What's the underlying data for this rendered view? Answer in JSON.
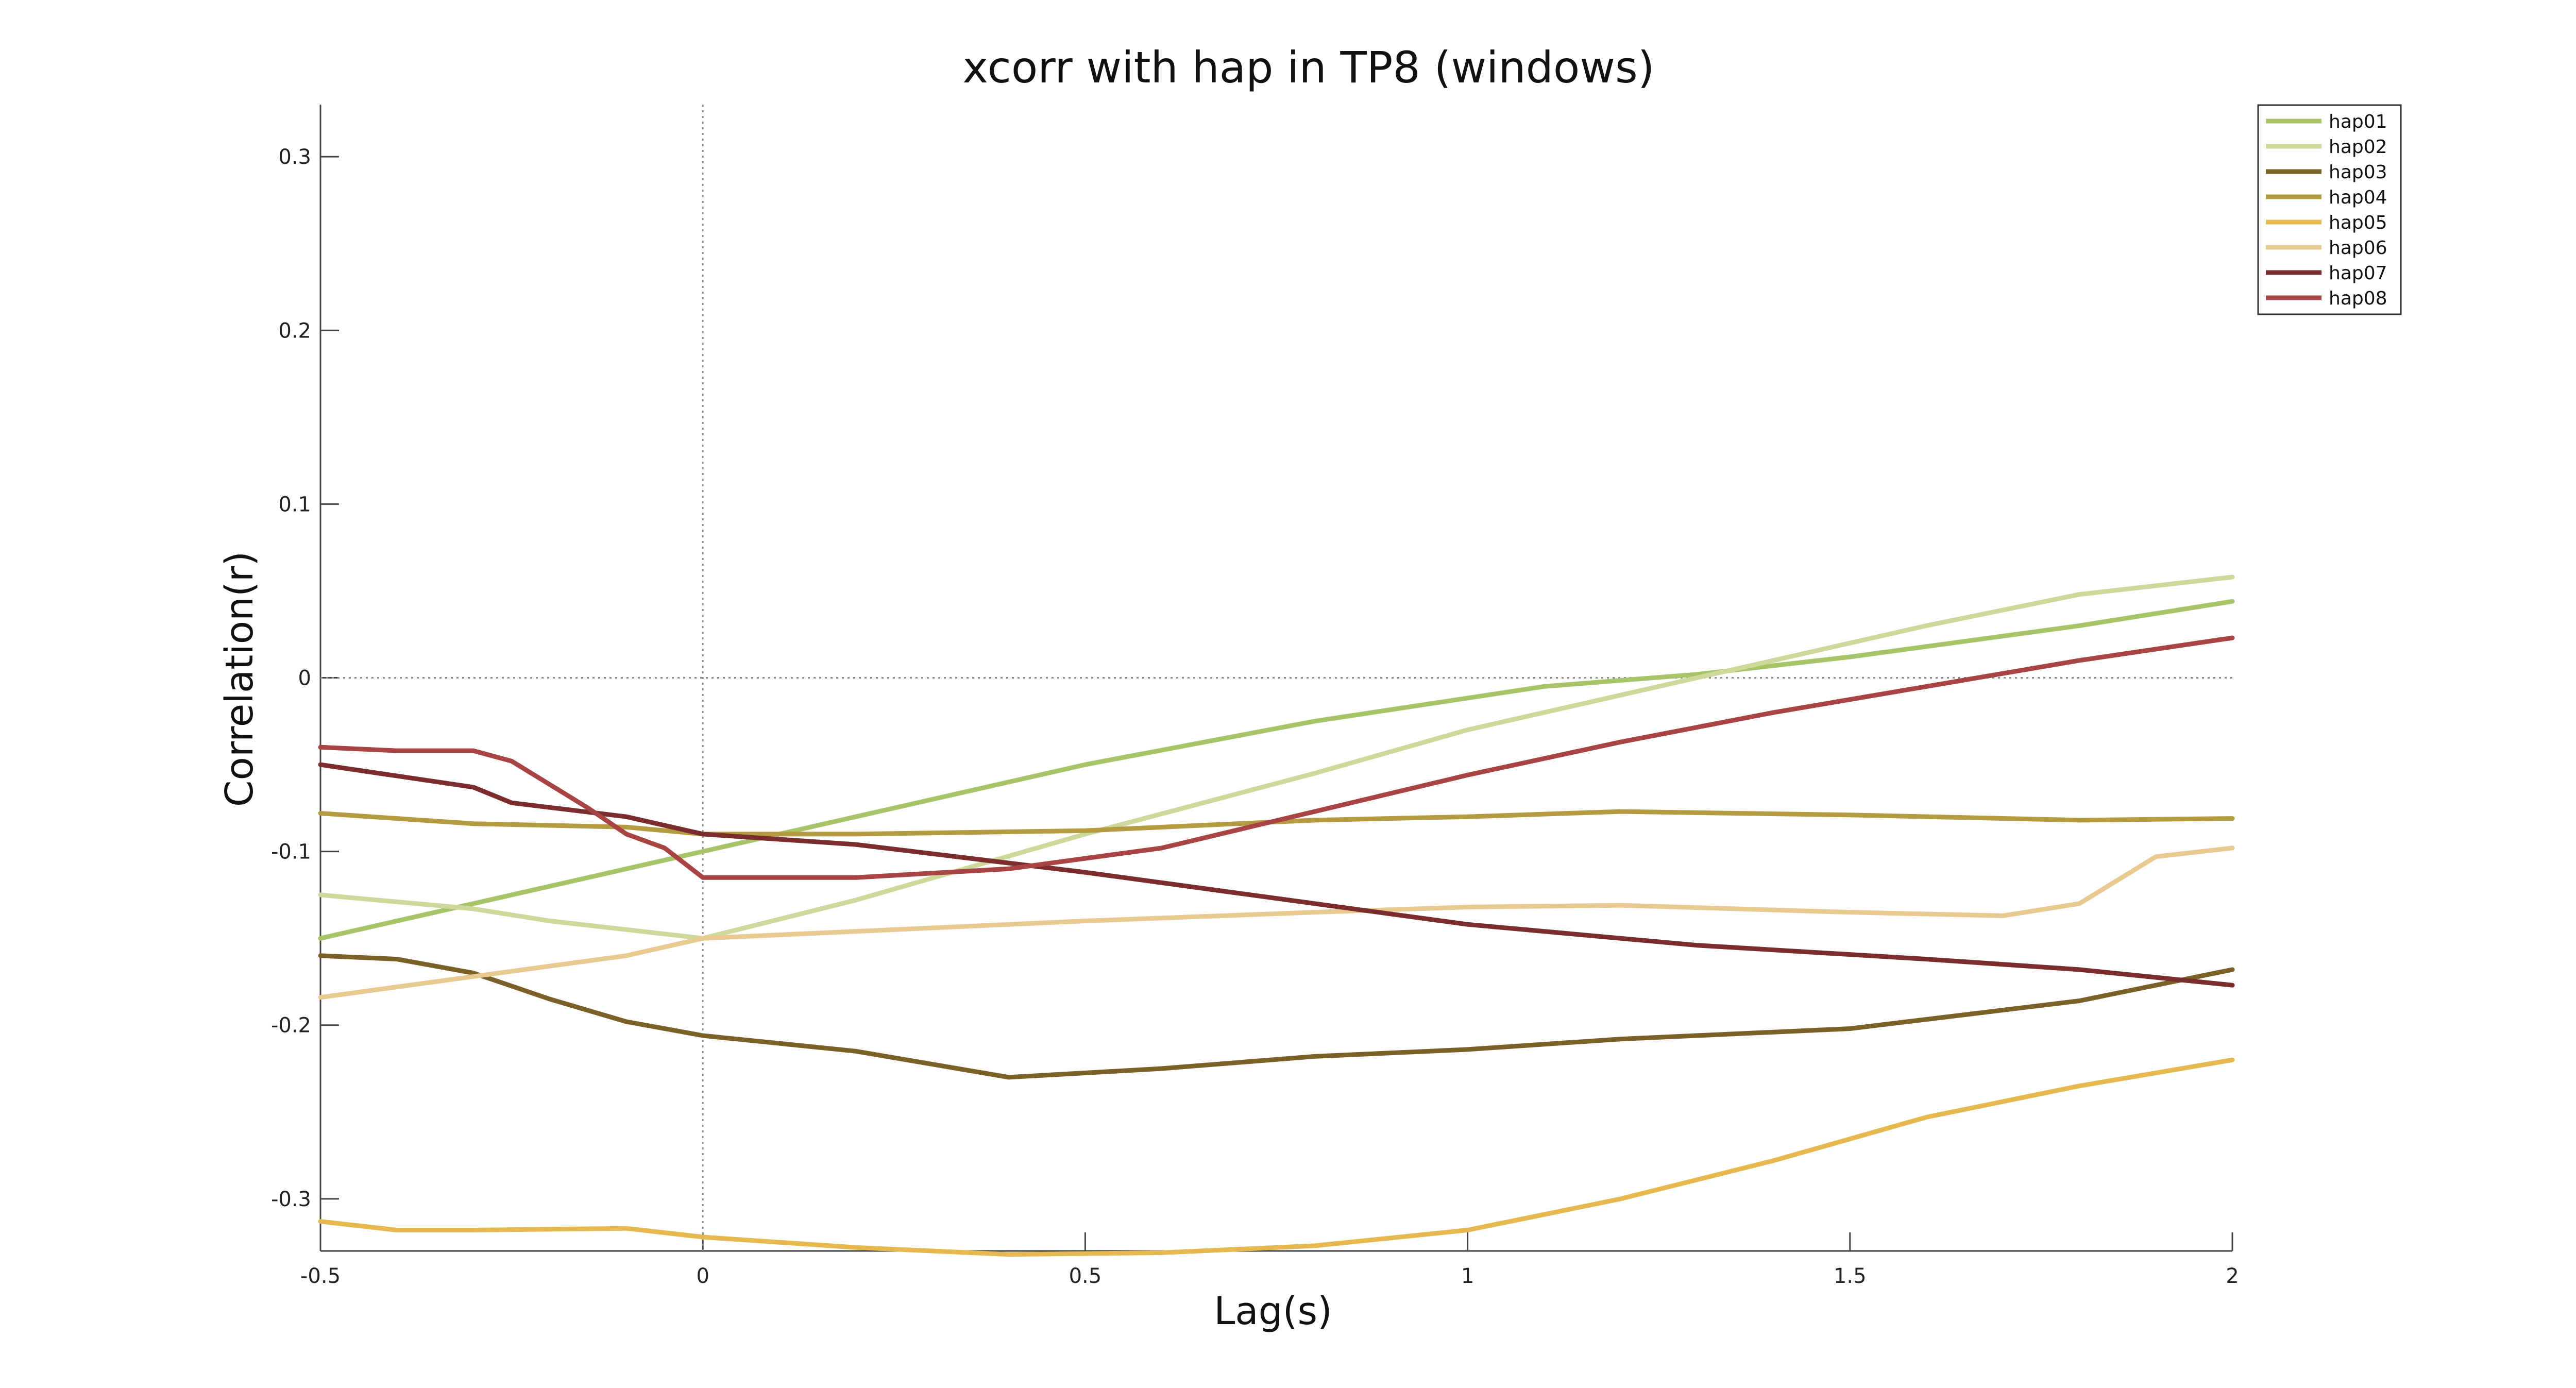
{
  "chart_data": {
    "type": "line",
    "title": "xcorr with hap in TP8 (windows)",
    "xlabel": "Lag(s)",
    "ylabel": "Correlation(r)",
    "xlim": [
      -0.5,
      2
    ],
    "ylim": [
      -0.33,
      0.33
    ],
    "xticks": [
      -0.5,
      0,
      0.5,
      1,
      1.5,
      2
    ],
    "xtick_labels": [
      "-0.5",
      "0",
      "0.5",
      "1",
      "1.5",
      "2"
    ],
    "yticks": [
      0.3,
      0.2,
      0.1,
      0,
      -0.1,
      -0.2,
      -0.3
    ],
    "ytick_labels": [
      "0.3",
      "0.2",
      "0.1",
      "0",
      "-0.1",
      "-0.2",
      "-0.3"
    ],
    "reference_lines": {
      "x": 0,
      "y": 0,
      "style": "dotted"
    },
    "grid": false,
    "legend_position": "top-right",
    "series": [
      {
        "name": "hap01",
        "color": "#a8c468",
        "x": [
          -0.5,
          -0.3,
          0,
          0.2,
          0.5,
          0.8,
          1.1,
          1.3,
          1.5,
          1.8,
          2.0
        ],
        "y": [
          -0.15,
          -0.13,
          -0.1,
          -0.08,
          -0.05,
          -0.025,
          -0.005,
          0.002,
          0.012,
          0.03,
          0.044
        ]
      },
      {
        "name": "hap02",
        "color": "#ccd99a",
        "x": [
          -0.5,
          -0.3,
          -0.2,
          -0.1,
          0,
          0.2,
          0.5,
          0.8,
          1.0,
          1.2,
          1.4,
          1.6,
          1.8,
          2.0
        ],
        "y": [
          -0.125,
          -0.133,
          -0.14,
          -0.145,
          -0.15,
          -0.128,
          -0.09,
          -0.055,
          -0.03,
          -0.01,
          0.01,
          0.03,
          0.048,
          0.058
        ]
      },
      {
        "name": "hap03",
        "color": "#7b6128",
        "x": [
          -0.5,
          -0.4,
          -0.3,
          -0.2,
          -0.1,
          0,
          0.2,
          0.4,
          0.6,
          0.8,
          1.0,
          1.2,
          1.5,
          1.8,
          2.0
        ],
        "y": [
          -0.16,
          -0.162,
          -0.17,
          -0.185,
          -0.198,
          -0.206,
          -0.215,
          -0.23,
          -0.225,
          -0.218,
          -0.214,
          -0.208,
          -0.202,
          -0.186,
          -0.168
        ]
      },
      {
        "name": "hap04",
        "color": "#b49a40",
        "x": [
          -0.5,
          -0.3,
          -0.1,
          0,
          0.2,
          0.5,
          0.8,
          1.0,
          1.2,
          1.5,
          1.8,
          2.0
        ],
        "y": [
          -0.078,
          -0.084,
          -0.086,
          -0.09,
          -0.09,
          -0.088,
          -0.082,
          -0.08,
          -0.077,
          -0.079,
          -0.082,
          -0.081
        ]
      },
      {
        "name": "hap05",
        "color": "#e6b850",
        "x": [
          -0.5,
          -0.4,
          -0.3,
          -0.1,
          0,
          0.2,
          0.4,
          0.6,
          0.8,
          1.0,
          1.2,
          1.4,
          1.6,
          1.8,
          2.0
        ],
        "y": [
          -0.313,
          -0.318,
          -0.318,
          -0.317,
          -0.322,
          -0.328,
          -0.332,
          -0.331,
          -0.327,
          -0.318,
          -0.3,
          -0.278,
          -0.253,
          -0.235,
          -0.22
        ]
      },
      {
        "name": "hap06",
        "color": "#e8c990",
        "x": [
          -0.5,
          -0.3,
          -0.1,
          0,
          0.2,
          0.5,
          0.8,
          1.0,
          1.2,
          1.5,
          1.7,
          1.8,
          1.9,
          2.0
        ],
        "y": [
          -0.184,
          -0.172,
          -0.16,
          -0.15,
          -0.146,
          -0.14,
          -0.135,
          -0.132,
          -0.131,
          -0.135,
          -0.137,
          -0.13,
          -0.103,
          -0.098
        ]
      },
      {
        "name": "hap07",
        "color": "#7b2c2c",
        "x": [
          -0.5,
          -0.3,
          -0.25,
          -0.1,
          0,
          0.2,
          0.5,
          0.8,
          1.0,
          1.3,
          1.6,
          1.8,
          2.0
        ],
        "y": [
          -0.05,
          -0.063,
          -0.072,
          -0.08,
          -0.09,
          -0.096,
          -0.112,
          -0.13,
          -0.142,
          -0.154,
          -0.162,
          -0.168,
          -0.177
        ]
      },
      {
        "name": "hap08",
        "color": "#a84444",
        "x": [
          -0.5,
          -0.4,
          -0.3,
          -0.25,
          -0.15,
          -0.1,
          -0.05,
          0,
          0.2,
          0.4,
          0.6,
          0.8,
          1.0,
          1.2,
          1.4,
          1.6,
          1.8,
          2.0
        ],
        "y": [
          -0.04,
          -0.042,
          -0.042,
          -0.048,
          -0.075,
          -0.09,
          -0.098,
          -0.115,
          -0.115,
          -0.11,
          -0.098,
          -0.077,
          -0.056,
          -0.037,
          -0.02,
          -0.005,
          0.01,
          0.023
        ]
      }
    ]
  }
}
